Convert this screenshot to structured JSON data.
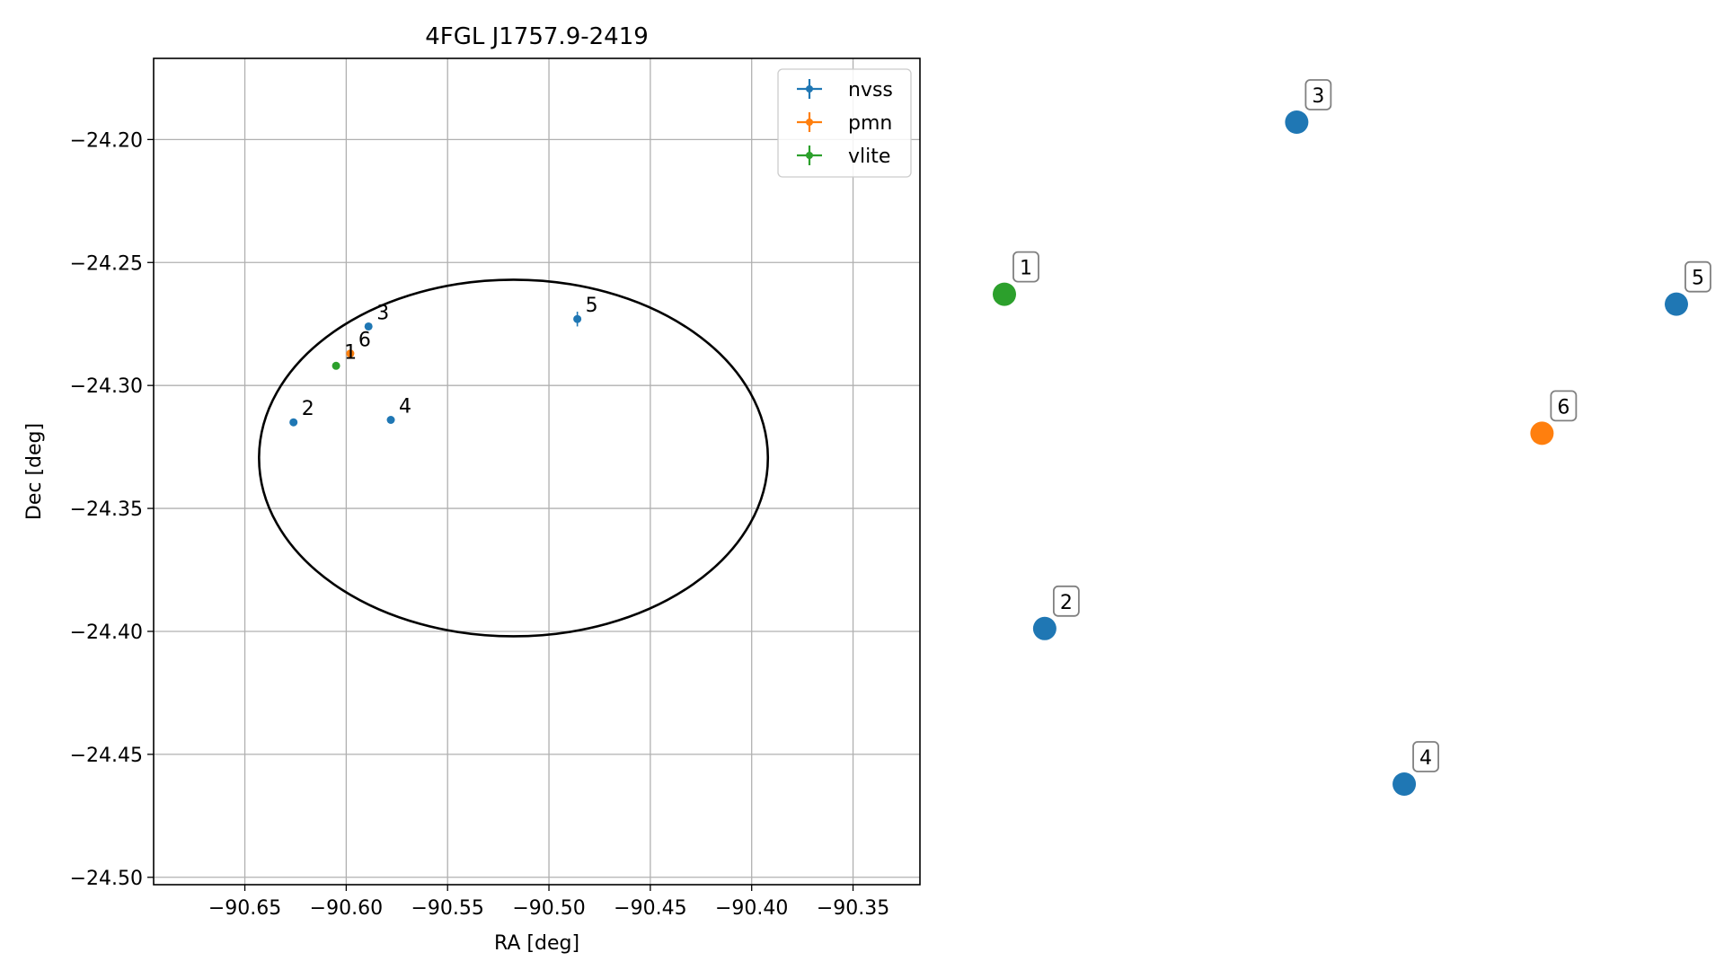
{
  "chart_data": [
    {
      "type": "scatter",
      "title": "4FGL J1757.9-2419",
      "xlabel": "RA [deg]",
      "ylabel": "Dec [deg]",
      "xlim": [
        -90.695,
        -90.317
      ],
      "ylim": [
        -24.503,
        -24.167
      ],
      "xticks": [
        -90.65,
        -90.6,
        -90.55,
        -90.5,
        -90.45,
        -90.4,
        -90.35
      ],
      "xtick_labels": [
        "−90.65",
        "−90.60",
        "−90.55",
        "−90.50",
        "−90.45",
        "−90.40",
        "−90.35"
      ],
      "yticks": [
        -24.2,
        -24.25,
        -24.3,
        -24.35,
        -24.4,
        -24.45,
        -24.5
      ],
      "ytick_labels": [
        "−24.20",
        "−24.25",
        "−24.30",
        "−24.35",
        "−24.40",
        "−24.45",
        "−24.50"
      ],
      "grid": true,
      "legend_position": "top-right",
      "series": [
        {
          "name": "nvss",
          "color": "#1f77b4",
          "points": [
            {
              "label": "2",
              "x": -90.626,
              "y": -24.315
            },
            {
              "label": "3",
              "x": -90.589,
              "y": -24.276
            },
            {
              "label": "4",
              "x": -90.578,
              "y": -24.314
            },
            {
              "label": "5",
              "x": -90.486,
              "y": -24.273,
              "yerr": 0.003
            }
          ]
        },
        {
          "name": "pmn",
          "color": "#ff7f0e",
          "points": [
            {
              "label": "6",
              "x": -90.598,
              "y": -24.287
            }
          ]
        },
        {
          "name": "vlite",
          "color": "#2ca02c",
          "points": [
            {
              "label": "1",
              "x": -90.605,
              "y": -24.292
            }
          ]
        }
      ],
      "ellipse": {
        "center_x": -90.5175,
        "center_y": -24.3295,
        "half_width_ra": 0.1255,
        "half_height_dec": 0.0725,
        "color": "#000000"
      }
    },
    {
      "type": "scatter",
      "title": "",
      "axes": "off",
      "points": [
        {
          "label": "1",
          "x": 0.0,
          "y": 0.74,
          "color": "#2ca02c"
        },
        {
          "label": "2",
          "x": 0.06,
          "y": 0.235,
          "color": "#1f77b4"
        },
        {
          "label": "3",
          "x": 0.435,
          "y": 1.0,
          "color": "#1f77b4"
        },
        {
          "label": "4",
          "x": 0.595,
          "y": 0.0,
          "color": "#1f77b4"
        },
        {
          "label": "5",
          "x": 1.0,
          "y": 0.725,
          "color": "#1f77b4"
        },
        {
          "label": "6",
          "x": 0.8,
          "y": 0.53,
          "color": "#ff7f0e"
        }
      ]
    }
  ]
}
